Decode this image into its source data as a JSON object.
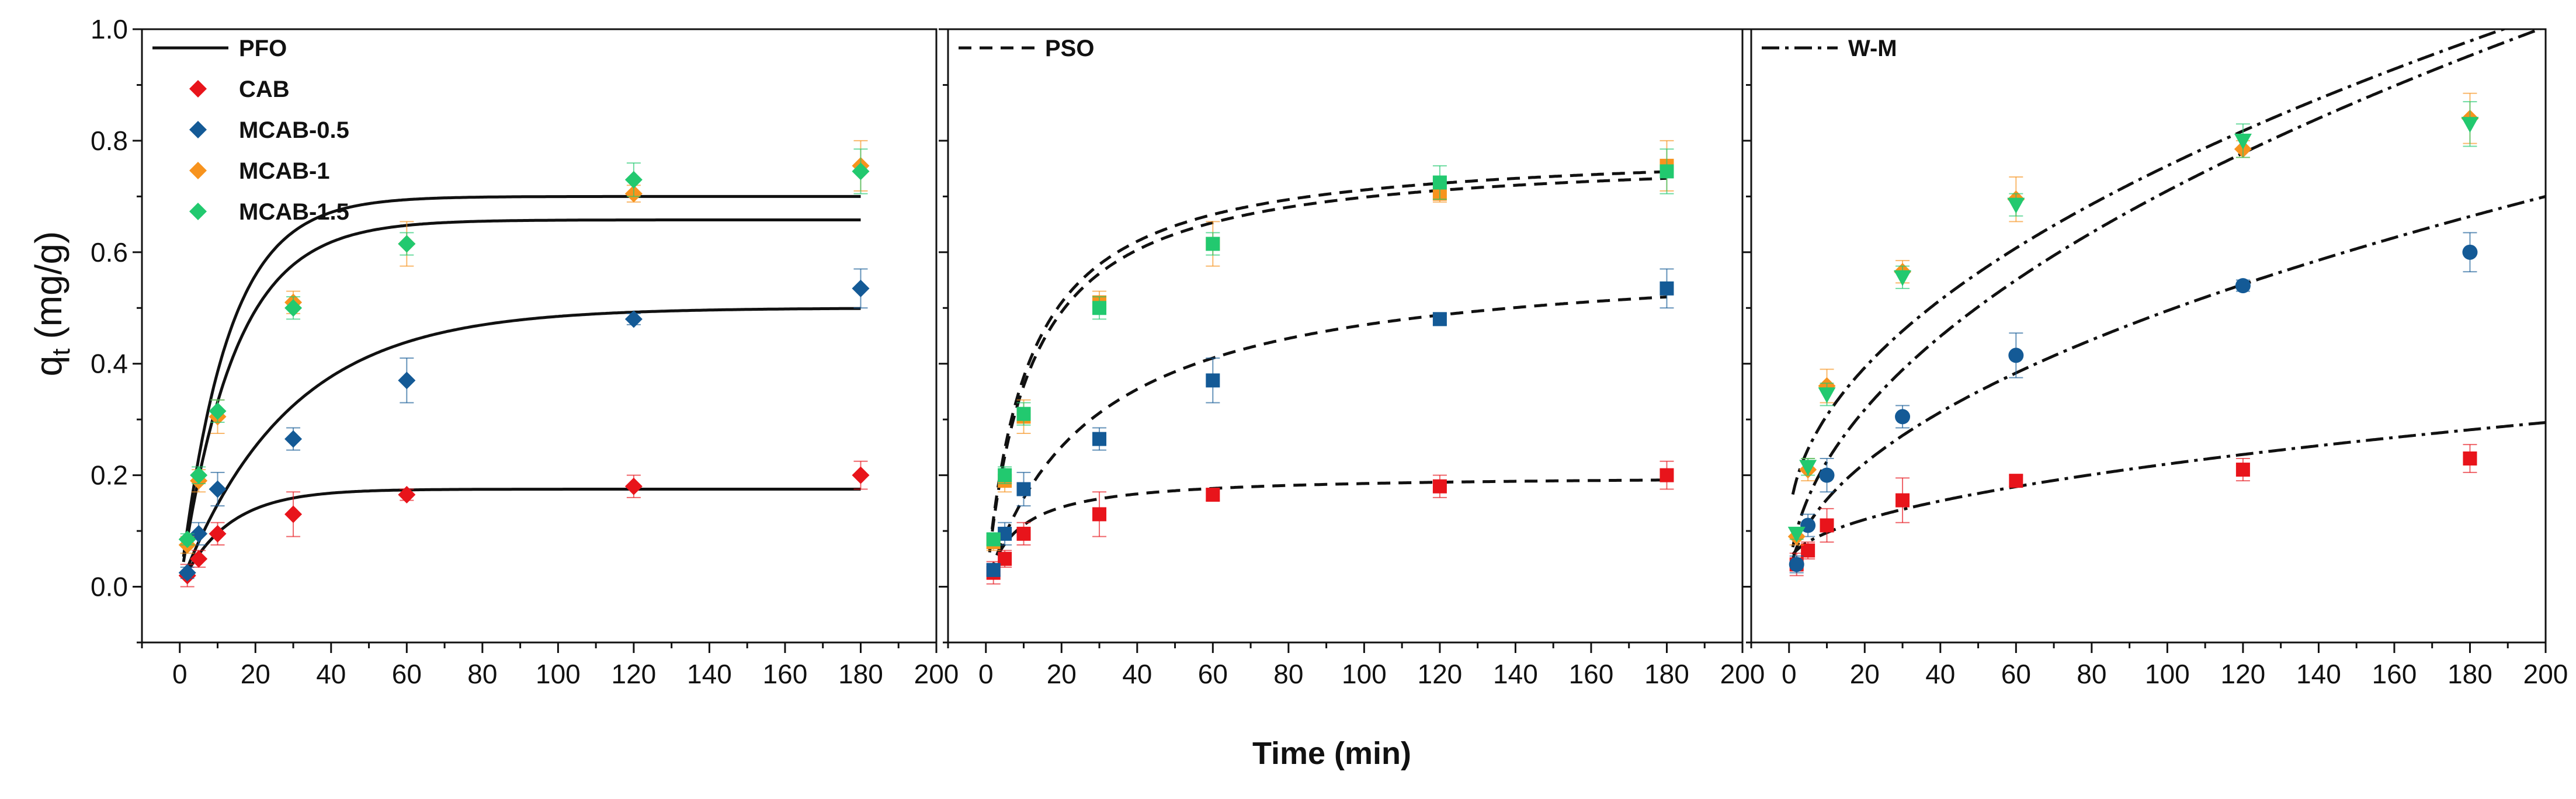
{
  "chart_data": {
    "type": "scatter",
    "xlabel": "Time (min)",
    "ylabel": "q",
    "ylabel_sub": "t",
    "ylabel_unit": "(mg/g)",
    "xlim": [
      -10,
      200
    ],
    "ylim": [
      -0.1,
      1.0
    ],
    "xticks": [
      0,
      20,
      40,
      60,
      80,
      100,
      120,
      140,
      160,
      180,
      200
    ],
    "yticks": [
      0.0,
      0.2,
      0.4,
      0.6,
      0.8,
      1.0
    ],
    "ytick_labels": [
      "0.0",
      "0.2",
      "0.4",
      "0.6",
      "0.8",
      "1.0"
    ],
    "x": [
      2,
      5,
      10,
      30,
      60,
      120,
      180
    ],
    "colors": {
      "CAB": "#e8141b",
      "MCAB-0.5": "#145a96",
      "MCAB-1": "#f7931e",
      "MCAB-1.5": "#22c96f"
    },
    "panels": [
      {
        "name": "PFO",
        "model_label": "PFO",
        "model_dash": "",
        "legend_samples": [
          "CAB",
          "MCAB-0.5",
          "MCAB-1",
          "MCAB-1.5"
        ],
        "marker": "diamond",
        "show_ytick_labels": true,
        "series": [
          {
            "name": "CAB",
            "y": [
              0.02,
              0.05,
              0.095,
              0.13,
              0.165,
              0.18,
              0.2
            ],
            "err": [
              0.02,
              0.015,
              0.02,
              0.04,
              0.01,
              0.02,
              0.025
            ],
            "fit": {
              "type": "pfo",
              "qe": 0.175,
              "k": 0.08
            }
          },
          {
            "name": "MCAB-0.5",
            "y": [
              0.025,
              0.095,
              0.175,
              0.265,
              0.37,
              0.48,
              0.535
            ],
            "err": [
              0.01,
              0.02,
              0.03,
              0.02,
              0.04,
              0.01,
              0.035
            ],
            "fit": {
              "type": "pfo",
              "qe": 0.5,
              "k": 0.035
            }
          },
          {
            "name": "MCAB-1",
            "y": [
              0.075,
              0.19,
              0.305,
              0.51,
              0.615,
              0.705,
              0.755
            ],
            "err": [
              0.015,
              0.02,
              0.03,
              0.02,
              0.04,
              0.015,
              0.045
            ],
            "fit": {
              "type": "pfo",
              "qe": 0.658,
              "k": 0.07
            }
          },
          {
            "name": "MCAB-1.5",
            "y": [
              0.085,
              0.2,
              0.315,
              0.5,
              0.615,
              0.73,
              0.745
            ],
            "err": [
              0.01,
              0.015,
              0.02,
              0.02,
              0.02,
              0.03,
              0.04
            ],
            "fit": {
              "type": "pfo",
              "qe": 0.7,
              "k": 0.08
            }
          }
        ]
      },
      {
        "name": "PSO",
        "model_label": "PSO",
        "model_dash": "22,14",
        "legend_samples": [],
        "marker": "square",
        "show_ytick_labels": false,
        "series": [
          {
            "name": "CAB",
            "y": [
              0.025,
              0.05,
              0.095,
              0.13,
              0.165,
              0.18,
              0.2
            ],
            "err": [
              0.02,
              0.015,
              0.02,
              0.04,
              0.01,
              0.02,
              0.025
            ],
            "fit": {
              "type": "pso",
              "qe": 0.2,
              "k": 0.62
            }
          },
          {
            "name": "MCAB-0.5",
            "y": [
              0.03,
              0.095,
              0.175,
              0.265,
              0.37,
              0.48,
              0.535
            ],
            "err": [
              0.01,
              0.02,
              0.03,
              0.02,
              0.04,
              0.01,
              0.035
            ],
            "fit": {
              "type": "pso",
              "qe": 0.6,
              "k": 0.06
            }
          },
          {
            "name": "MCAB-1",
            "y": [
              0.08,
              0.19,
              0.305,
              0.51,
              0.615,
              0.705,
              0.755
            ],
            "err": [
              0.015,
              0.02,
              0.03,
              0.02,
              0.04,
              0.015,
              0.045
            ],
            "fit": {
              "type": "pso",
              "qe": 0.78,
              "k": 0.11
            }
          },
          {
            "name": "MCAB-1.5",
            "y": [
              0.085,
              0.2,
              0.31,
              0.5,
              0.615,
              0.725,
              0.745
            ],
            "err": [
              0.01,
              0.015,
              0.02,
              0.02,
              0.02,
              0.03,
              0.04
            ],
            "fit": {
              "type": "pso",
              "qe": 0.79,
              "k": 0.115
            }
          }
        ]
      },
      {
        "name": "W-M",
        "model_label": "W-M",
        "model_dash": "30,10,6,10",
        "legend_samples": [],
        "marker": "mixed",
        "show_ytick_labels": false,
        "series": [
          {
            "name": "CAB",
            "marker": "square",
            "y": [
              0.04,
              0.065,
              0.11,
              0.155,
              0.19,
              0.21,
              0.23
            ],
            "err": [
              0.02,
              0.015,
              0.03,
              0.04,
              0.01,
              0.02,
              0.025
            ],
            "fit": {
              "type": "wm",
              "a": 0.04,
              "b": 0.018
            }
          },
          {
            "name": "MCAB-0.5",
            "marker": "circle",
            "y": [
              0.04,
              0.11,
              0.2,
              0.305,
              0.415,
              0.54,
              0.6
            ],
            "err": [
              0.015,
              0.02,
              0.03,
              0.02,
              0.04,
              0.01,
              0.035
            ],
            "fit": {
              "type": "wm",
              "a": 0.0,
              "b": 0.0495
            }
          },
          {
            "name": "MCAB-1",
            "marker": "diamond",
            "y": [
              0.09,
              0.21,
              0.36,
              0.565,
              0.695,
              0.785,
              0.84
            ],
            "err": [
              0.015,
              0.02,
              0.03,
              0.02,
              0.04,
              0.015,
              0.045
            ],
            "fit": {
              "type": "wm",
              "a": 0.1,
              "b": 0.0655
            }
          },
          {
            "name": "MCAB-1.5",
            "marker": "triangle-down",
            "y": [
              0.095,
              0.215,
              0.345,
              0.555,
              0.685,
              0.8,
              0.83
            ],
            "err": [
              0.01,
              0.015,
              0.02,
              0.02,
              0.02,
              0.03,
              0.04
            ],
            "fit": {
              "type": "wm",
              "a": 0.0,
              "b": 0.071
            }
          }
        ]
      }
    ]
  }
}
